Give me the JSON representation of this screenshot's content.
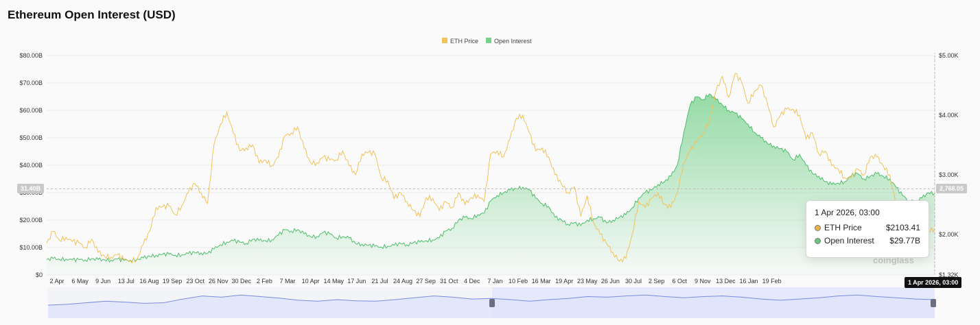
{
  "title": "Ethereum Open Interest (USD)",
  "watermark": "coinglass",
  "tooltip": {
    "date": "1 Apr 2026, 03:00",
    "rows": [
      {
        "label": "ETH Price",
        "value": "$2103.41",
        "color": "#e8b34a"
      },
      {
        "label": "Open Interest",
        "value": "$29.77B",
        "color": "#6cc47f"
      }
    ]
  },
  "crosshair": {
    "left_label": "31.40B",
    "right_label": "2,768.05",
    "date_label": "1 Apr 2026, 03:00"
  },
  "colors": {
    "price": "#f1c25c",
    "oi_line": "#4fbe6a",
    "oi_fill_top": "#74d08a",
    "navigator_line": "#7b8be0",
    "navigator_fill": "#dfe3fb",
    "navigator_selection": "#e6e9fb"
  },
  "chart_data": {
    "type": "line",
    "legend": [
      "ETH Price",
      "Open Interest"
    ],
    "legend_position": "top-center",
    "grid": true,
    "x_ticks": [
      "2 Apr",
      "6 May",
      "9 Jun",
      "13 Jul",
      "16 Aug",
      "19 Sep",
      "23 Oct",
      "26 Nov",
      "30 Dec",
      "2 Feb",
      "7 Mar",
      "10 Apr",
      "14 May",
      "17 Jun",
      "21 Jul",
      "24 Aug",
      "27 Sep",
      "31 Oct",
      "4 Dec",
      "7 Jan",
      "10 Feb",
      "16 Mar",
      "19 Apr",
      "23 May",
      "26 Jun",
      "30 Jul",
      "2 Sep",
      "6 Oct",
      "9 Nov",
      "13 Dec",
      "16 Jan",
      "19 Feb"
    ],
    "y_left_ticks": [
      "$0",
      "$10.00B",
      "$20.00B",
      "$30.00B",
      "$40.00B",
      "$50.00B",
      "$60.00B",
      "$70.00B",
      "$80.00B"
    ],
    "y_left_range": [
      0,
      80
    ],
    "y_right_ticks": [
      "$1.32K",
      "$2.00K",
      "$3.00K",
      "$4.00K",
      "$5.00K"
    ],
    "y_right_range": [
      1320,
      5000
    ],
    "series": [
      {
        "name": "ETH Price",
        "axis": "right",
        "values": [
          1850,
          2050,
          1900,
          1950,
          1880,
          1860,
          1780,
          1920,
          1700,
          1630,
          1620,
          1660,
          1580,
          1560,
          1570,
          1830,
          2050,
          2450,
          2460,
          2480,
          2330,
          2480,
          2700,
          2860,
          2700,
          2520,
          3500,
          3850,
          4050,
          3700,
          3400,
          3450,
          3500,
          3200,
          3250,
          3150,
          3300,
          3650,
          3700,
          3800,
          3450,
          3200,
          3200,
          3300,
          3250,
          3250,
          3400,
          3150,
          3000,
          3350,
          3380,
          3350,
          2950,
          2900,
          2600,
          2700,
          2550,
          2400,
          2300,
          2620,
          2600,
          2400,
          2550,
          2450,
          2700,
          2500,
          2620,
          2660,
          2550,
          3350,
          3400,
          3300,
          3600,
          3950,
          4000,
          3700,
          3400,
          3450,
          3300,
          3000,
          2850,
          2700,
          2800,
          2300,
          2650,
          2200,
          2000,
          1850,
          1700,
          1550,
          1600,
          2000,
          2550,
          2450,
          2600,
          2700,
          2500,
          2450,
          2700,
          3200,
          3400,
          3550,
          3700,
          3900,
          4400,
          4650,
          4300,
          4700,
          4550,
          4200,
          4400,
          4500,
          4200,
          3800,
          4000,
          4100,
          4100,
          4000,
          3600,
          3700,
          3350,
          3400,
          3150,
          3100,
          2950,
          2950,
          3100,
          3000,
          3300,
          3300,
          3150,
          3000,
          2500,
          2300,
          2200,
          1980,
          1990,
          2050,
          2100
        ]
      },
      {
        "name": "Open Interest",
        "axis": "left",
        "values": [
          5.6,
          6.0,
          5.7,
          5.8,
          5.5,
          5.6,
          5.5,
          5.9,
          5.6,
          5.5,
          5.4,
          5.8,
          5.3,
          5.4,
          5.6,
          6.2,
          6.8,
          7.2,
          7.5,
          7.6,
          7.2,
          7.3,
          7.8,
          8.2,
          8.0,
          7.8,
          9.5,
          11.0,
          12.0,
          12.5,
          12.0,
          11.5,
          13.0,
          12.6,
          12.5,
          12.8,
          14.5,
          16.5,
          16.0,
          16.5,
          15.0,
          14.0,
          14.0,
          15.5,
          15.0,
          13.5,
          14.0,
          13.5,
          11.5,
          11.2,
          10.8,
          10.5,
          10.2,
          10.5,
          10.8,
          11.5,
          11.0,
          11.8,
          12.0,
          12.5,
          12.8,
          13.5,
          16.0,
          17.0,
          20.0,
          21.0,
          20.5,
          22.0,
          22.5,
          27.0,
          29.0,
          30.0,
          31.0,
          31.5,
          32.0,
          31.0,
          28.0,
          26.0,
          25.0,
          21.0,
          20.0,
          18.5,
          19.0,
          18.0,
          20.0,
          20.5,
          21.0,
          19.0,
          20.0,
          21.0,
          22.0,
          24.5,
          28.0,
          30.0,
          31.0,
          33.0,
          34.0,
          36.0,
          40.0,
          52.0,
          62.0,
          65.0,
          64.0,
          66.0,
          64.0,
          62.0,
          60.0,
          59.0,
          57.0,
          55.0,
          52.0,
          50.0,
          48.0,
          47.0,
          46.0,
          45.0,
          42.0,
          44.0,
          40.0,
          37.0,
          36.0,
          34.0,
          33.0,
          33.5,
          34.0,
          36.0,
          37.0,
          35.0,
          36.0,
          37.0,
          36.0,
          35.0,
          32.0,
          29.0,
          27.0,
          26.5,
          28.0,
          30.0,
          29.77
        ]
      }
    ],
    "navigator": {
      "values": [
        0.42,
        0.45,
        0.5,
        0.55,
        0.52,
        0.48,
        0.5,
        0.62,
        0.72,
        0.68,
        0.75,
        0.7,
        0.65,
        0.58,
        0.55,
        0.6,
        0.56,
        0.55,
        0.6,
        0.66,
        0.72,
        0.68,
        0.62,
        0.64,
        0.6,
        0.55,
        0.6,
        0.64,
        0.7,
        0.68,
        0.72,
        0.75,
        0.7,
        0.66,
        0.7,
        0.72,
        0.68,
        0.62,
        0.58,
        0.62,
        0.66,
        0.72,
        0.75,
        0.7,
        0.66,
        0.62,
        0.6
      ],
      "selection": [
        0.5,
        1.0
      ]
    }
  }
}
